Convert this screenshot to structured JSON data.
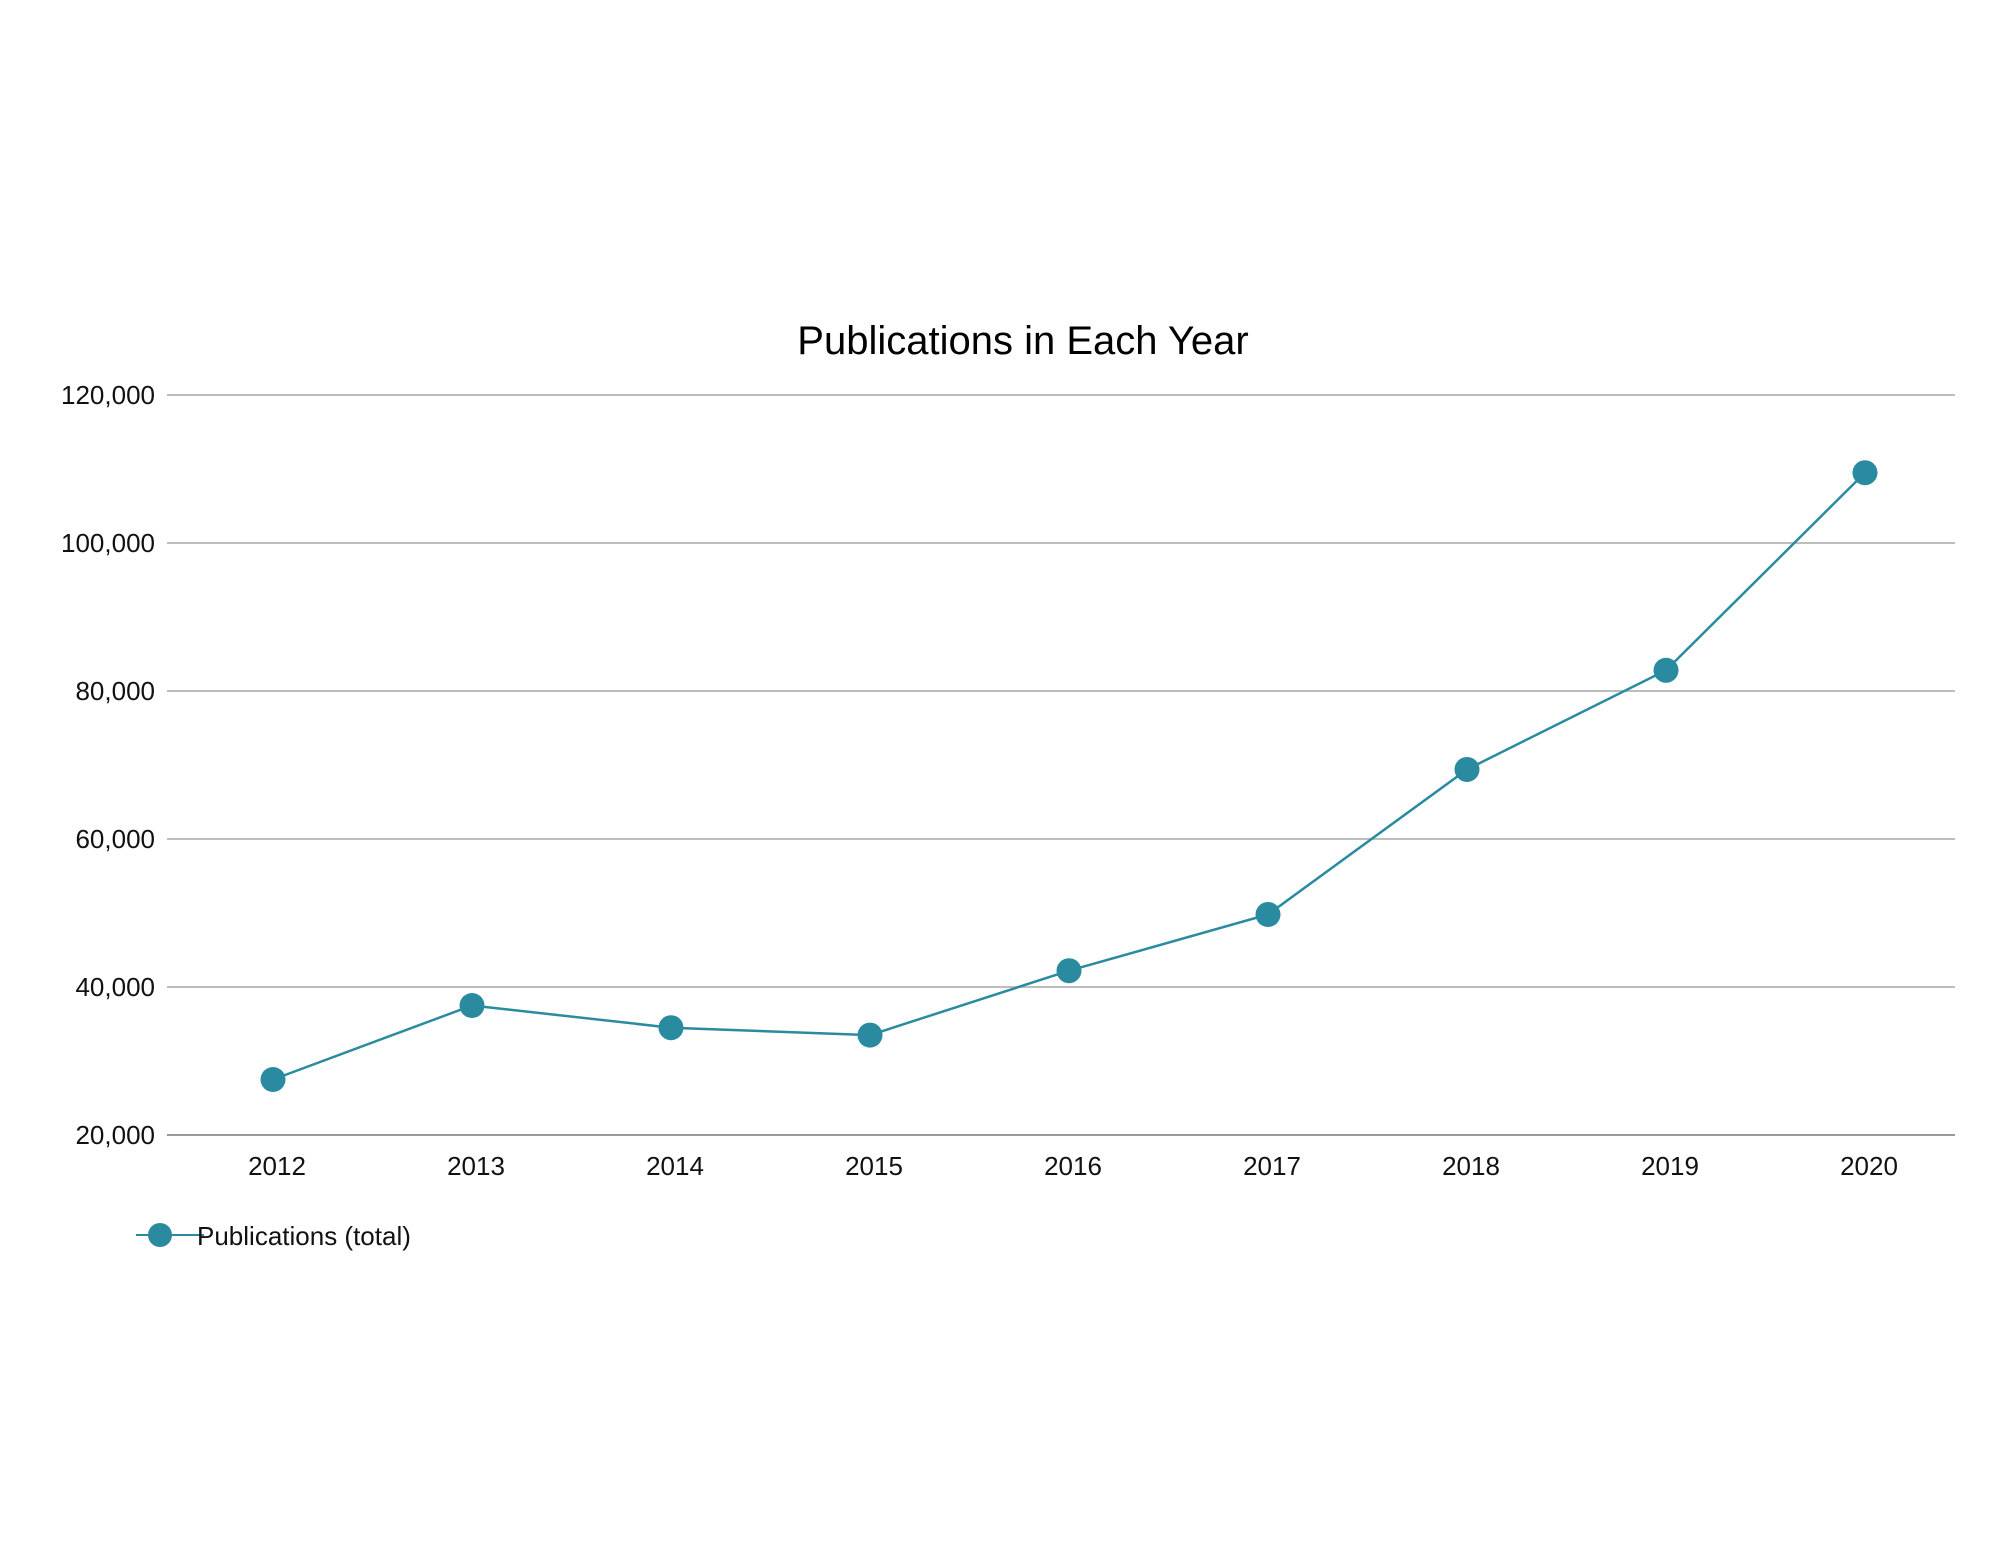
{
  "chart_data": {
    "type": "line",
    "title": "Publications in Each Year",
    "xlabel": "",
    "ylabel": "",
    "categories": [
      "2012",
      "2013",
      "2014",
      "2015",
      "2016",
      "2017",
      "2018",
      "2019",
      "2020"
    ],
    "series": [
      {
        "name": "Publications (total)",
        "values": [
          27500,
          37500,
          34500,
          33500,
          42200,
          49800,
          69400,
          82800,
          109500
        ],
        "color": "#2a8aa0"
      }
    ],
    "ylim": [
      20000,
      120000
    ],
    "yticks": [
      20000,
      40000,
      60000,
      80000,
      100000,
      120000
    ],
    "ytick_labels": [
      "20,000",
      "40,000",
      "60,000",
      "80,000",
      "100,000",
      "120,000"
    ],
    "grid": "horizontal",
    "legend_position": "bottom-left"
  }
}
